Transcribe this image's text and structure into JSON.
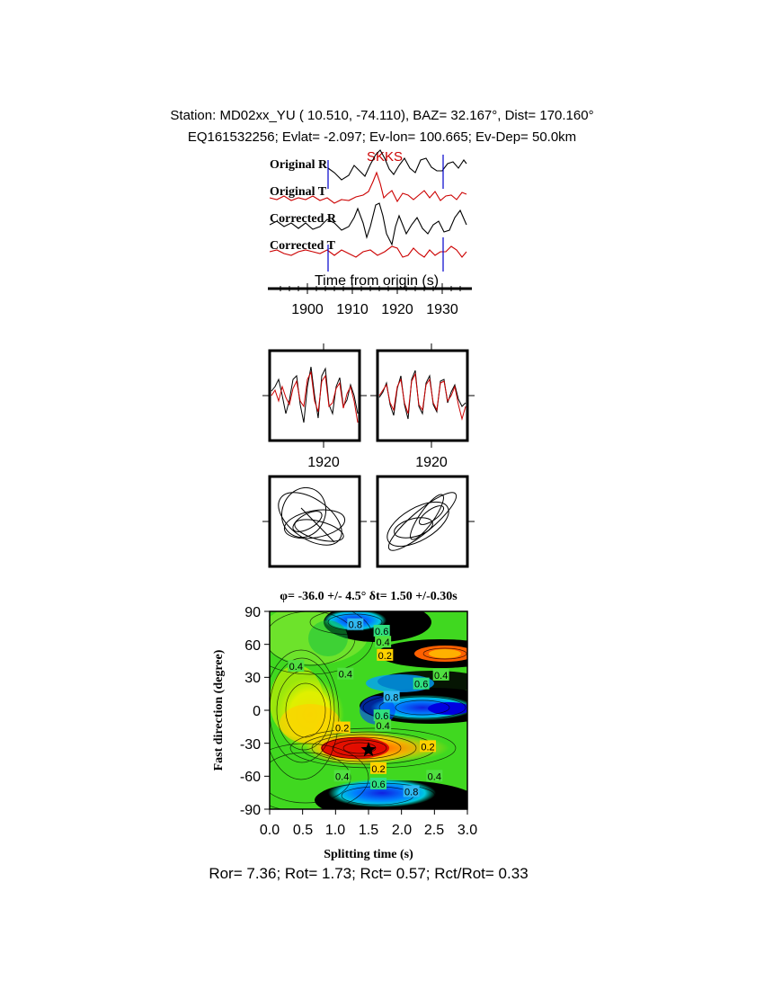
{
  "header": {
    "line1": "Station: MD02xx_YU (  10.510,  -74.110), BAZ=   32.167°, Dist=  170.160°",
    "line2": "EQ161532256; Evlat=  -2.097; Ev-lon= 100.665; Ev-Dep= 50.0km"
  },
  "traces": {
    "labels": [
      "Original R",
      "Original T",
      "Corrected R",
      "Corrected T"
    ],
    "phase_label": "SKKS",
    "xlabel": "Time from origin (s)",
    "ticks": [
      "1900",
      "1910",
      "1920",
      "1930"
    ],
    "colors": {
      "radial": "#000000",
      "transverse": "#cc0000",
      "marker": "#0000cc"
    }
  },
  "waveform_panels": {
    "tick_left": "1920",
    "tick_right": "1920"
  },
  "chart_data": [
    {
      "type": "heatmap",
      "title": "φ= -36.0 +/- 4.5° δt= 1.50 +/-0.30s",
      "xlabel": "Splitting time (s)",
      "ylabel": "Fast direction (degree)",
      "xlim": [
        0,
        3
      ],
      "ylim": [
        -90,
        90
      ],
      "xticks": [
        "0.0",
        "0.5",
        "1.0",
        "1.5",
        "2.0",
        "2.5",
        "3.0"
      ],
      "yticks": [
        "90",
        "60",
        "30",
        "0",
        "-30",
        "-60",
        "-90"
      ],
      "best_estimate": {
        "dt": 1.5,
        "phi": -36
      },
      "contour_labels": [
        {
          "text": "0.4",
          "dt": 0.4,
          "phi": 40
        },
        {
          "text": "0.4",
          "dt": 1.15,
          "phi": 33
        },
        {
          "text": "0.8",
          "dt": 1.3,
          "phi": 78
        },
        {
          "text": "0.6",
          "dt": 1.7,
          "phi": 72
        },
        {
          "text": "0.4",
          "dt": 1.72,
          "phi": 62
        },
        {
          "text": "0.2",
          "dt": 1.75,
          "phi": 50
        },
        {
          "text": "0.4",
          "dt": 2.6,
          "phi": 32
        },
        {
          "text": "0.6",
          "dt": 2.3,
          "phi": 24
        },
        {
          "text": "0.8",
          "dt": 1.85,
          "phi": 12
        },
        {
          "text": "0.6",
          "dt": 1.7,
          "phi": -5
        },
        {
          "text": "0.4",
          "dt": 1.72,
          "phi": -14
        },
        {
          "text": "0.2",
          "dt": 1.1,
          "phi": -16
        },
        {
          "text": "0.2",
          "dt": 2.4,
          "phi": -33
        },
        {
          "text": "0.2",
          "dt": 1.65,
          "phi": -53
        },
        {
          "text": "0.4",
          "dt": 1.1,
          "phi": -60
        },
        {
          "text": "0.6",
          "dt": 1.65,
          "phi": -67
        },
        {
          "text": "0.4",
          "dt": 2.5,
          "phi": -60
        },
        {
          "text": "0.8",
          "dt": 2.15,
          "phi": -74
        }
      ]
    }
  ],
  "footer": {
    "text": "Ror= 7.36; Rot= 1.73; Rct= 0.57; Rct/Rot= 0.33"
  }
}
